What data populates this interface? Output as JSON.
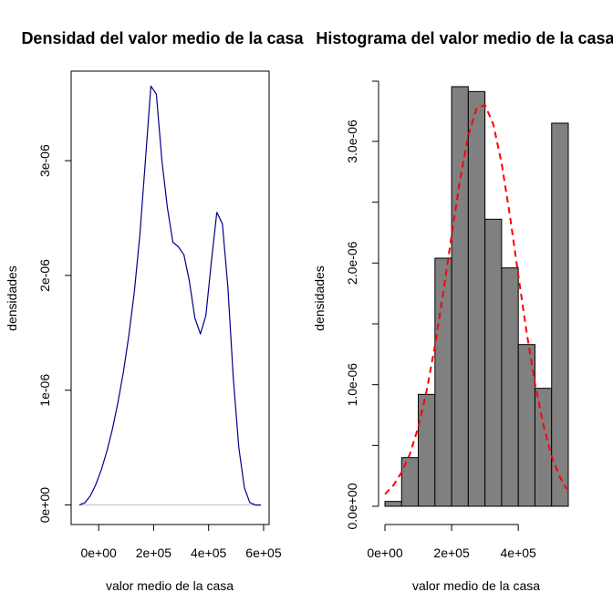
{
  "colors": {
    "density_line": "#00008b",
    "baseline": "#bebebe",
    "bar_fill": "#808080",
    "bar_stroke": "#000000",
    "normal_curve": "#ff0000",
    "axis": "#000000"
  },
  "chart_data": [
    {
      "type": "line",
      "title": "Densidad del valor medio de la casa",
      "xlabel": "valor medio de la casa",
      "ylabel": "densidades",
      "xlim": [
        -100000,
        620000
      ],
      "ylim": [
        -1.7e-07,
        3.78e-06
      ],
      "x_ticks": [
        0,
        200000,
        400000,
        600000
      ],
      "x_tick_labels": [
        "0e+00",
        "2e+05",
        "4e+05",
        "6e+05"
      ],
      "y_ticks": [
        0,
        1e-06,
        2e-06,
        3e-06
      ],
      "y_tick_labels": [
        "0e+00",
        "1e-06",
        "2e-06",
        "3e-06"
      ],
      "series": [
        {
          "x": [
            -70000,
            -50000,
            -30000,
            -10000,
            10000,
            30000,
            50000,
            70000,
            90000,
            110000,
            130000,
            150000,
            170000,
            190000,
            210000,
            230000,
            250000,
            270000,
            290000,
            310000,
            330000,
            350000,
            370000,
            390000,
            410000,
            430000,
            450000,
            470000,
            490000,
            510000,
            530000,
            550000,
            570000,
            590000
          ],
          "y": [
            0.0,
            2e-08,
            8e-08,
            1.8e-07,
            3.1e-07,
            4.7e-07,
            6.6e-07,
            8.9e-07,
            1.16e-06,
            1.48e-06,
            1.86e-06,
            2.35e-06,
            3e-06,
            3.65e-06,
            3.58e-06,
            3e-06,
            2.59e-06,
            2.29e-06,
            2.25e-06,
            2.18e-06,
            1.95e-06,
            1.63e-06,
            1.49e-06,
            1.65e-06,
            2.12e-06,
            2.55e-06,
            2.45e-06,
            1.9e-06,
            1.1e-06,
            5e-07,
            1.5e-07,
            2e-08,
            0.0,
            0.0
          ]
        }
      ],
      "baseline": 0
    },
    {
      "type": "bar",
      "title": "Histograma del valor medio de la casa",
      "xlabel": "valor medio de la casa",
      "ylabel": "densidades",
      "xlim": [
        -20000,
        545000
      ],
      "ylim": [
        -1.4e-07,
        3.5e-06
      ],
      "x_ticks": [
        0,
        200000,
        400000
      ],
      "x_tick_labels": [
        "0e+00",
        "2e+05",
        "4e+05"
      ],
      "y_ticks": [
        0,
        1e-06,
        2e-06,
        3e-06
      ],
      "y_tick_labels": [
        "0.0e+00",
        "1.0e-06",
        "2.0e-06",
        "3.0e-06"
      ],
      "bins": [
        {
          "from": 0,
          "to": 50000,
          "value": 4e-08
        },
        {
          "from": 50000,
          "to": 100000,
          "value": 4e-07
        },
        {
          "from": 100000,
          "to": 150000,
          "value": 9.2e-07
        },
        {
          "from": 150000,
          "to": 200000,
          "value": 2.04e-06
        },
        {
          "from": 200000,
          "to": 250000,
          "value": 3.45e-06
        },
        {
          "from": 250000,
          "to": 300000,
          "value": 3.41e-06
        },
        {
          "from": 300000,
          "to": 350000,
          "value": 2.36e-06
        },
        {
          "from": 350000,
          "to": 400000,
          "value": 1.96e-06
        },
        {
          "from": 400000,
          "to": 450000,
          "value": 1.33e-06
        },
        {
          "from": 450000,
          "to": 500000,
          "value": 9.7e-07
        },
        {
          "from": 500000,
          "to": 550000,
          "value": 3.15e-06
        }
      ],
      "curve": {
        "x": [
          0,
          25000,
          50000,
          75000,
          100000,
          125000,
          150000,
          175000,
          200000,
          225000,
          250000,
          275000,
          300000,
          325000,
          350000,
          375000,
          400000,
          425000,
          450000,
          475000,
          500000,
          525000,
          545000
        ],
        "y": [
          1e-07,
          1.7e-07,
          2.8e-07,
          4.3e-07,
          6.5e-07,
          9.5e-07,
          1.32e-06,
          1.76e-06,
          2.23e-06,
          2.68e-06,
          3.05e-06,
          3.27e-06,
          3.3e-06,
          3.14e-06,
          2.82e-06,
          2.39e-06,
          1.9e-06,
          1.43e-06,
          1.01e-06,
          6.7e-07,
          4.1e-07,
          2.4e-07,
          1.4e-07
        ]
      }
    }
  ]
}
